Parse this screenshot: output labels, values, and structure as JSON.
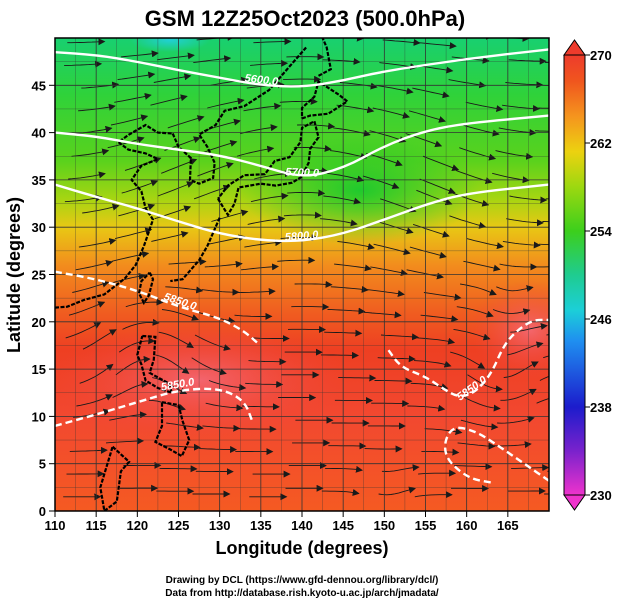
{
  "title": "GSM 12Z25Oct2023 (500.0hPa)",
  "credits": [
    "Drawing by DCL (https://www.gfd-dennou.org/library/dcl/)",
    "Data from http://database.rish.kyoto-u.ac.jp/arch/jmadata/"
  ],
  "colors": {
    "contour": "#ffffff",
    "streamline": "#1a1a1a",
    "grid": "#333333",
    "coast": "#000000"
  },
  "chart_data": {
    "type": "heatmap",
    "title": "GSM 12Z25Oct2023 (500.0hPa)",
    "xlabel": "Longitude (degrees)",
    "ylabel": "Latitude  (degrees)",
    "xlim": [
      110,
      170
    ],
    "ylim": [
      0,
      50
    ],
    "xticks": [
      110,
      115,
      120,
      125,
      130,
      135,
      140,
      145,
      150,
      155,
      160,
      165
    ],
    "yticks": [
      0,
      5,
      10,
      15,
      20,
      25,
      30,
      35,
      40,
      45
    ],
    "grid": true,
    "colorbar": {
      "min": 230,
      "max": 270,
      "ticks": [
        230,
        238,
        246,
        254,
        262,
        270
      ]
    },
    "contours": [
      {
        "label": "5600.0",
        "lat": [
          48.5,
          48.2,
          47.5,
          46.6,
          45.8,
          45.0,
          44.8,
          45.5,
          46.5,
          47.8,
          48.8
        ],
        "lon": [
          110,
          115,
          120,
          125,
          130,
          135,
          140,
          145,
          150,
          160,
          170
        ]
      },
      {
        "label": "5700.0",
        "lat": [
          40.0,
          39.6,
          38.8,
          38.2,
          37.6,
          36.5,
          35.2,
          36.2,
          38.6,
          40.2,
          41.0,
          41.8
        ],
        "lon": [
          110,
          115,
          120,
          125,
          130,
          135,
          140,
          145,
          150,
          155,
          160,
          170
        ]
      },
      {
        "label": "5800.0",
        "lat": [
          34.5,
          33.2,
          32.0,
          30.6,
          29.3,
          28.6,
          28.5,
          29.3,
          30.8,
          32.4,
          33.6,
          34.5
        ],
        "lon": [
          110,
          115,
          120,
          125,
          130,
          135,
          140,
          145,
          150,
          155,
          160,
          170
        ]
      },
      {
        "label": "5850.0",
        "lat": [
          25.3,
          24.5,
          23.3,
          21.6,
          20.4,
          19.0,
          17.6
        ],
        "lon": [
          110,
          115,
          120,
          125,
          130,
          133,
          134.8
        ]
      },
      {
        "label": "5850.0",
        "lat": [
          17.0,
          15.2,
          14.2,
          13.0,
          12.0,
          12.5,
          14.5,
          17.5,
          19.0,
          20.2,
          20.2
        ],
        "lon": [
          150.5,
          152,
          155,
          157,
          159,
          161,
          163,
          164.5,
          166,
          168,
          170
        ]
      },
      {
        "label": "5850.0",
        "lat": [
          9.0,
          10.2,
          11.5,
          12.8,
          13.0,
          11.7,
          9.4
        ],
        "lon": [
          110,
          115,
          120,
          125,
          130,
          133,
          134
        ]
      }
    ],
    "extra_contours": [
      {
        "lat": [
          3.2,
          5.0,
          6.8,
          8.5,
          9.0,
          6.0,
          3.5,
          3.0
        ],
        "lon": [
          170,
          167,
          164,
          161,
          158,
          157,
          160,
          163
        ]
      }
    ]
  }
}
